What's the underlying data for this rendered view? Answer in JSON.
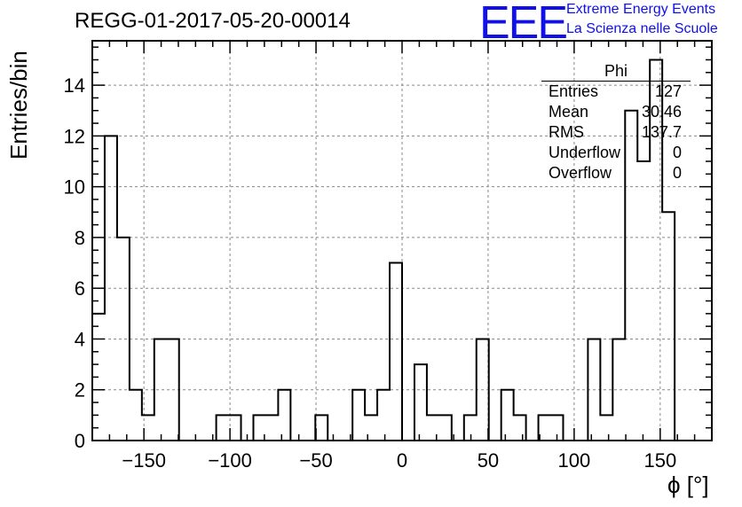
{
  "chart_data": {
    "type": "histogram",
    "title": "REGG-01-2017-05-20-00014",
    "xlabel": "ϕ [°]",
    "ylabel": "Entries/bin",
    "xlim": [
      -180,
      180
    ],
    "ylim": [
      0,
      15.75
    ],
    "bin_width": 7.2,
    "x_ticks": [
      -150,
      -100,
      -50,
      0,
      50,
      100,
      150
    ],
    "x_tick_labels": [
      "−150",
      "−100",
      "−50",
      "0",
      "50",
      "100",
      "150"
    ],
    "y_ticks": [
      0,
      2,
      4,
      6,
      8,
      10,
      12,
      14
    ],
    "y_tick_labels": [
      "0",
      "2",
      "4",
      "6",
      "8",
      "10",
      "12",
      "14"
    ],
    "grid": true,
    "counts": [
      5,
      12,
      8,
      2,
      1,
      4,
      4,
      0,
      0,
      0,
      1,
      1,
      0,
      1,
      1,
      2,
      0,
      0,
      1,
      0,
      0,
      2,
      1,
      2,
      7,
      0,
      3,
      1,
      1,
      0,
      1,
      4,
      0,
      2,
      1,
      0,
      1,
      1,
      0,
      0,
      4,
      1,
      4,
      13,
      11,
      15,
      9,
      0,
      0,
      0
    ]
  },
  "stats_box": {
    "title": "Phi",
    "rows": [
      {
        "key": "Entries",
        "value": "127"
      },
      {
        "key": "Mean",
        "value": "30.46"
      },
      {
        "key": "RMS",
        "value": "137.7"
      },
      {
        "key": "Underflow",
        "value": "0"
      },
      {
        "key": "Overflow",
        "value": "0"
      }
    ]
  },
  "logo": {
    "mark": "EEE",
    "line1": "Extreme Energy Events",
    "line2": "La Scienza nelle Scuole",
    "color": "#1010e8"
  }
}
